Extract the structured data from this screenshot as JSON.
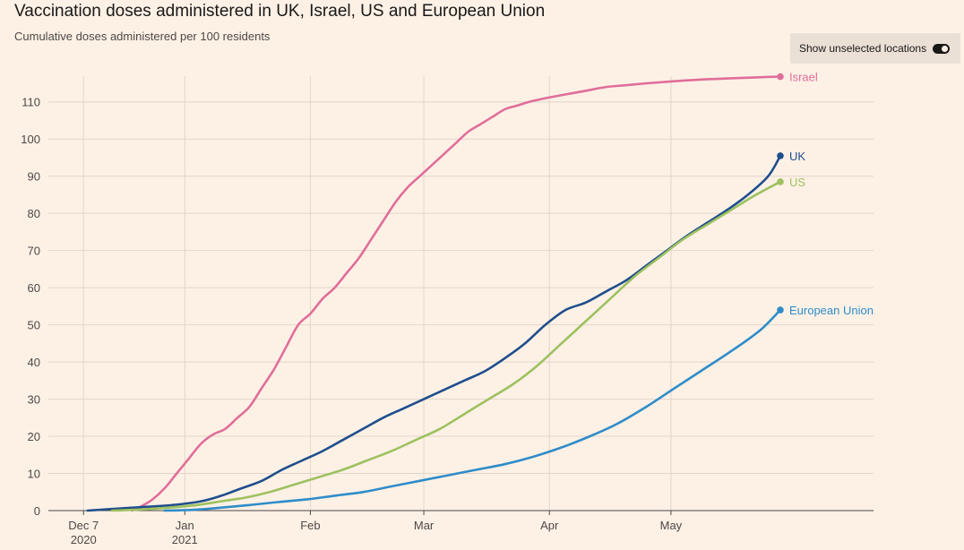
{
  "header": {
    "title": "Vaccination doses administered in UK, Israel, US and European Union",
    "subtitle": "Cumulative doses administered per 100 residents"
  },
  "toggle": {
    "label": "Show unselected locations",
    "state": "on"
  },
  "colors": {
    "Israel": "#e06e9a",
    "UK": "#1f4e8c",
    "US": "#9dc15f",
    "European Union": "#2f8cc9",
    "grid": "#e2d6cb",
    "axis": "#4d4845"
  },
  "chart_data": {
    "type": "line",
    "ylim": [
      0,
      115
    ],
    "yticks": [
      0,
      10,
      20,
      30,
      40,
      50,
      60,
      70,
      80,
      90,
      100,
      110
    ],
    "x_axis_ticks": [
      {
        "date": "2020-12-07",
        "label": "Dec 7",
        "sub": "2020"
      },
      {
        "date": "2021-01-01",
        "label": "Jan",
        "sub": "2021"
      },
      {
        "date": "2021-02-01",
        "label": "Feb",
        "sub": ""
      },
      {
        "date": "2021-03-01",
        "label": "Mar",
        "sub": ""
      },
      {
        "date": "2021-04-01",
        "label": "Apr",
        "sub": ""
      },
      {
        "date": "2021-05-01",
        "label": "May",
        "sub": ""
      }
    ],
    "x_range": [
      "2020-11-27",
      "2021-06-20"
    ],
    "grid": true,
    "series": [
      {
        "name": "Israel",
        "points": [
          [
            "2020-12-19",
            0
          ],
          [
            "2020-12-21",
            1
          ],
          [
            "2020-12-24",
            3
          ],
          [
            "2020-12-27",
            6
          ],
          [
            "2020-12-30",
            10
          ],
          [
            "2021-01-02",
            14
          ],
          [
            "2021-01-05",
            18
          ],
          [
            "2021-01-08",
            20.5
          ],
          [
            "2021-01-11",
            22
          ],
          [
            "2021-01-14",
            25
          ],
          [
            "2021-01-17",
            28
          ],
          [
            "2021-01-20",
            33
          ],
          [
            "2021-01-23",
            38
          ],
          [
            "2021-01-26",
            44
          ],
          [
            "2021-01-29",
            50
          ],
          [
            "2021-02-01",
            53
          ],
          [
            "2021-02-04",
            57
          ],
          [
            "2021-02-07",
            60
          ],
          [
            "2021-02-10",
            64
          ],
          [
            "2021-02-13",
            68
          ],
          [
            "2021-02-16",
            73
          ],
          [
            "2021-02-19",
            78
          ],
          [
            "2021-02-22",
            83
          ],
          [
            "2021-02-25",
            87
          ],
          [
            "2021-02-28",
            90
          ],
          [
            "2021-03-03",
            93
          ],
          [
            "2021-03-06",
            96
          ],
          [
            "2021-03-09",
            99
          ],
          [
            "2021-03-12",
            102
          ],
          [
            "2021-03-15",
            104
          ],
          [
            "2021-03-18",
            106
          ],
          [
            "2021-03-21",
            108
          ],
          [
            "2021-03-24",
            109
          ],
          [
            "2021-03-27",
            110
          ],
          [
            "2021-03-31",
            111
          ],
          [
            "2021-04-05",
            112
          ],
          [
            "2021-04-10",
            113
          ],
          [
            "2021-04-15",
            114
          ],
          [
            "2021-04-20",
            114.5
          ],
          [
            "2021-04-25",
            115
          ],
          [
            "2021-05-01",
            115.5
          ],
          [
            "2021-05-08",
            116
          ],
          [
            "2021-05-15",
            116.3
          ],
          [
            "2021-05-22",
            116.6
          ],
          [
            "2021-05-28",
            116.8
          ]
        ]
      },
      {
        "name": "UK",
        "points": [
          [
            "2020-12-08",
            0
          ],
          [
            "2020-12-15",
            0.5
          ],
          [
            "2020-12-22",
            1
          ],
          [
            "2020-12-29",
            1.5
          ],
          [
            "2021-01-05",
            2.5
          ],
          [
            "2021-01-10",
            4
          ],
          [
            "2021-01-15",
            6
          ],
          [
            "2021-01-20",
            8
          ],
          [
            "2021-01-25",
            11
          ],
          [
            "2021-01-30",
            13.5
          ],
          [
            "2021-02-04",
            16
          ],
          [
            "2021-02-09",
            19
          ],
          [
            "2021-02-14",
            22
          ],
          [
            "2021-02-19",
            25
          ],
          [
            "2021-02-24",
            27.5
          ],
          [
            "2021-03-01",
            30
          ],
          [
            "2021-03-06",
            32.5
          ],
          [
            "2021-03-11",
            35
          ],
          [
            "2021-03-16",
            37.5
          ],
          [
            "2021-03-21",
            41
          ],
          [
            "2021-03-26",
            45
          ],
          [
            "2021-03-31",
            50
          ],
          [
            "2021-04-05",
            54
          ],
          [
            "2021-04-10",
            56
          ],
          [
            "2021-04-15",
            59
          ],
          [
            "2021-04-20",
            62
          ],
          [
            "2021-04-25",
            66
          ],
          [
            "2021-04-30",
            70
          ],
          [
            "2021-05-05",
            74
          ],
          [
            "2021-05-10",
            77.5
          ],
          [
            "2021-05-15",
            81
          ],
          [
            "2021-05-20",
            85
          ],
          [
            "2021-05-25",
            90
          ],
          [
            "2021-05-28",
            95.5
          ]
        ]
      },
      {
        "name": "US",
        "points": [
          [
            "2020-12-14",
            0
          ],
          [
            "2020-12-21",
            0.3
          ],
          [
            "2020-12-28",
            0.8
          ],
          [
            "2021-01-04",
            1.5
          ],
          [
            "2021-01-10",
            2.5
          ],
          [
            "2021-01-16",
            3.5
          ],
          [
            "2021-01-22",
            5
          ],
          [
            "2021-01-28",
            7
          ],
          [
            "2021-02-03",
            9
          ],
          [
            "2021-02-09",
            11
          ],
          [
            "2021-02-15",
            13.5
          ],
          [
            "2021-02-21",
            16
          ],
          [
            "2021-02-27",
            19
          ],
          [
            "2021-03-05",
            22
          ],
          [
            "2021-03-11",
            26
          ],
          [
            "2021-03-17",
            30
          ],
          [
            "2021-03-23",
            34
          ],
          [
            "2021-03-29",
            39
          ],
          [
            "2021-04-04",
            45
          ],
          [
            "2021-04-10",
            51
          ],
          [
            "2021-04-16",
            57
          ],
          [
            "2021-04-22",
            63
          ],
          [
            "2021-04-28",
            68
          ],
          [
            "2021-05-04",
            73
          ],
          [
            "2021-05-10",
            77
          ],
          [
            "2021-05-16",
            81
          ],
          [
            "2021-05-22",
            85
          ],
          [
            "2021-05-28",
            88.5
          ]
        ]
      },
      {
        "name": "European Union",
        "points": [
          [
            "2020-12-27",
            0
          ],
          [
            "2021-01-03",
            0.2
          ],
          [
            "2021-01-10",
            0.8
          ],
          [
            "2021-01-17",
            1.5
          ],
          [
            "2021-01-24",
            2.3
          ],
          [
            "2021-01-31",
            3
          ],
          [
            "2021-02-07",
            4
          ],
          [
            "2021-02-14",
            5
          ],
          [
            "2021-02-21",
            6.5
          ],
          [
            "2021-02-28",
            8
          ],
          [
            "2021-03-07",
            9.5
          ],
          [
            "2021-03-14",
            11
          ],
          [
            "2021-03-21",
            12.5
          ],
          [
            "2021-03-28",
            14.5
          ],
          [
            "2021-04-04",
            17
          ],
          [
            "2021-04-11",
            20
          ],
          [
            "2021-04-18",
            23.5
          ],
          [
            "2021-04-25",
            28
          ],
          [
            "2021-05-02",
            33
          ],
          [
            "2021-05-09",
            38
          ],
          [
            "2021-05-16",
            43
          ],
          [
            "2021-05-23",
            48.5
          ],
          [
            "2021-05-28",
            54
          ]
        ]
      }
    ],
    "end_labels": [
      "Israel",
      "UK",
      "US",
      "European Union"
    ]
  }
}
